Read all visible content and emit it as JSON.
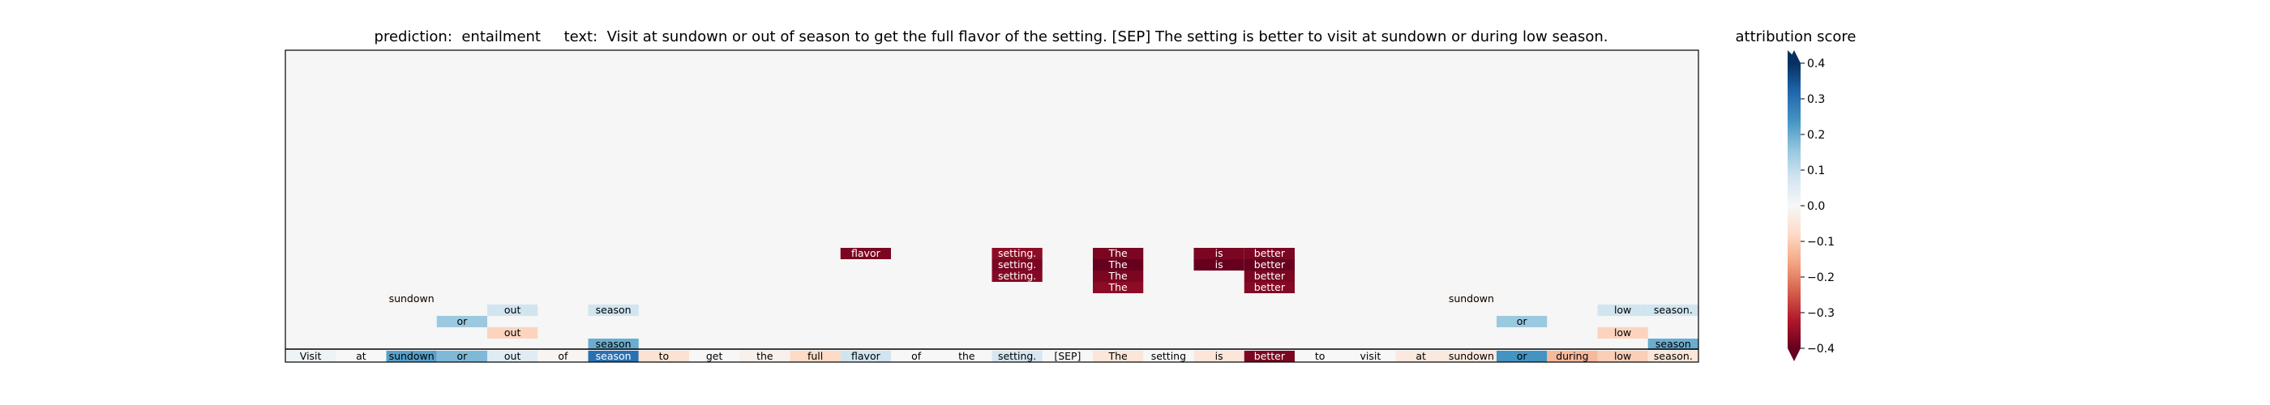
{
  "chart_data": {
    "type": "heatmap",
    "title": "prediction:  entailment     text:  Visit at sundown or out of season to get the full flavor of the setting. [SEP] The setting is better to visit at sundown or during low season.",
    "colorbar": {
      "label": "attribution score",
      "vmin": -0.4,
      "vmax": 0.4,
      "ticks": [
        "0.4",
        "0.3",
        "0.2",
        "0.1",
        "0.0",
        "−0.1",
        "−0.2",
        "−0.3",
        "−0.4"
      ],
      "colormap": "RdBu"
    },
    "tokens": [
      "Visit",
      "at",
      "sundown",
      "or",
      "out",
      "of",
      "season",
      "to",
      "get",
      "the",
      "full",
      "flavor",
      "of",
      "the",
      "setting.",
      "[SEP]",
      "The",
      "setting",
      "is",
      "better",
      "to",
      "visit",
      "at",
      "sundown",
      "or",
      "during",
      "low",
      "season."
    ],
    "token_scores": [
      0.02,
      0.0,
      0.22,
      0.18,
      0.05,
      -0.01,
      0.3,
      -0.06,
      0.0,
      -0.02,
      -0.08,
      0.08,
      0.0,
      0.0,
      0.07,
      0.0,
      -0.05,
      0.0,
      -0.05,
      -0.38,
      0.0,
      0.0,
      -0.04,
      -0.04,
      0.24,
      -0.13,
      -0.1,
      -0.05
    ],
    "layer_cells": [
      {
        "token": 11,
        "level": 8,
        "text": "flavor",
        "value": -0.38
      },
      {
        "token": 14,
        "level": 8,
        "text": "setting.",
        "value": -0.36
      },
      {
        "token": 14,
        "level": 7,
        "text": "setting.",
        "value": -0.38
      },
      {
        "token": 14,
        "level": 6,
        "text": "setting.",
        "value": -0.37
      },
      {
        "token": 16,
        "level": 8,
        "text": "The",
        "value": -0.38
      },
      {
        "token": 16,
        "level": 7,
        "text": "The",
        "value": -0.4
      },
      {
        "token": 16,
        "level": 6,
        "text": "The",
        "value": -0.38
      },
      {
        "token": 16,
        "level": 5,
        "text": "The",
        "value": -0.36
      },
      {
        "token": 18,
        "level": 8,
        "text": "is",
        "value": -0.38
      },
      {
        "token": 18,
        "level": 7,
        "text": "is",
        "value": -0.4
      },
      {
        "token": 19,
        "level": 8,
        "text": "better",
        "value": -0.38
      },
      {
        "token": 19,
        "level": 7,
        "text": "better",
        "value": -0.4
      },
      {
        "token": 19,
        "level": 6,
        "text": "better",
        "value": -0.38
      },
      {
        "token": 19,
        "level": 5,
        "text": "better",
        "value": -0.37
      },
      {
        "token": 2,
        "level": 4,
        "text": "sundown",
        "value": -0.01
      },
      {
        "token": 23,
        "level": 4,
        "text": "sundown",
        "value": -0.01
      },
      {
        "token": 4,
        "level": 3,
        "text": "out",
        "value": 0.08
      },
      {
        "token": 6,
        "level": 3,
        "text": "season",
        "value": 0.08
      },
      {
        "token": 26,
        "level": 3,
        "text": "low",
        "value": 0.08
      },
      {
        "token": 27,
        "level": 3,
        "text": "season.",
        "value": 0.08
      },
      {
        "token": 3,
        "level": 2,
        "text": "or",
        "value": 0.15
      },
      {
        "token": 24,
        "level": 2,
        "text": "or",
        "value": 0.15
      },
      {
        "token": 4,
        "level": 1,
        "text": "out",
        "value": -0.09
      },
      {
        "token": 26,
        "level": 1,
        "text": "low",
        "value": -0.09
      },
      {
        "token": 6,
        "level": 0,
        "text": "season",
        "value": 0.2
      },
      {
        "token": 27,
        "level": 0,
        "text": "season",
        "value": 0.2
      }
    ]
  }
}
